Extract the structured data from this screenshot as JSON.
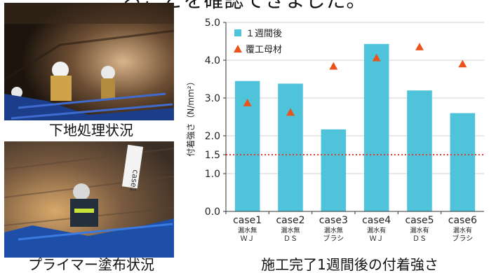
{
  "headline": "ることを確認できました。",
  "photos": {
    "top_caption": "下地処理状況",
    "bottom_caption": "プライマー塗布状況",
    "bottom_photo_label": "case1"
  },
  "chart_caption": "施工完了1週間後の付着強さ",
  "colors": {
    "bar": "#4fc3d9",
    "marker": "#e8541c",
    "threshold": "#e53935"
  },
  "chart_data": {
    "type": "bar",
    "categories": [
      "case1",
      "case2",
      "case3",
      "case4",
      "case5",
      "case6"
    ],
    "sublabels": [
      [
        "漏水無",
        "ＷＪ"
      ],
      [
        "漏水無",
        "ＤＳ"
      ],
      [
        "漏水無",
        "ブラシ"
      ],
      [
        "漏水有",
        "ＷＪ"
      ],
      [
        "漏水有",
        "ＤＳ"
      ],
      [
        "漏水有",
        "ブラシ"
      ]
    ],
    "series": [
      {
        "name": "１週間後",
        "kind": "bar",
        "values": [
          3.45,
          3.38,
          2.17,
          4.43,
          3.2,
          2.6
        ]
      },
      {
        "name": "覆工母材",
        "kind": "marker",
        "values": [
          2.87,
          2.62,
          3.84,
          4.06,
          4.35,
          3.9
        ]
      }
    ],
    "ylabel": "付着強さ（N/mm²）",
    "ylim": [
      0,
      5
    ],
    "yticks": [
      "0.0",
      "1.0",
      "1.5",
      "2.0",
      "3.0",
      "4.0",
      "5.0"
    ],
    "ytick_values": [
      0,
      1,
      1.5,
      2,
      3,
      4,
      5
    ],
    "threshold": 1.5,
    "legend_position": "top-left"
  }
}
